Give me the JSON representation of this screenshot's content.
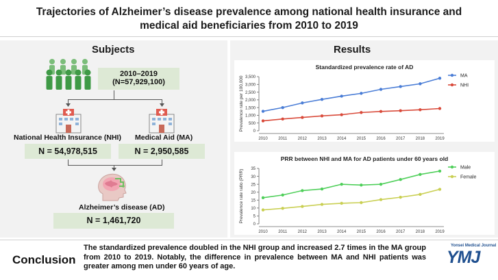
{
  "header": {
    "title_line1": "Trajectories of Alzheimer’s disease prevalence among national health insurance and",
    "title_line2": "medical aid beneficiaries from 2010 to 2019"
  },
  "subjects": {
    "heading": "Subjects",
    "period": "2010–2019",
    "total": "(N=57,929,100)",
    "nhi_label": "National Health Insurance (NHI)",
    "nhi_count": "N = 54,978,515",
    "ma_label": "Medical Aid (MA)",
    "ma_count": "N = 2,950,585",
    "ad_label": "Alzheimer’s disease (AD)",
    "ad_count": "N = 1,461,720"
  },
  "results": {
    "heading": "Results"
  },
  "colors": {
    "ma": "#4a7dd6",
    "nhi": "#d94a3a",
    "male": "#4fcf5a",
    "female": "#c9cf52",
    "box": "#dde9d5"
  },
  "chart_data": [
    {
      "type": "line",
      "title": "Standardized prevalence rate of AD",
      "xlabel": "",
      "ylabel": "Prevalence rate per 100,000",
      "x": [
        "2010",
        "2011",
        "2012",
        "2013",
        "2014",
        "2015",
        "2016",
        "2017",
        "2018",
        "2019"
      ],
      "ylim": [
        0,
        3500
      ],
      "yticks": [
        "0",
        "500",
        "1,000",
        "1,500",
        "2,000",
        "2,500",
        "3,000",
        "3,500"
      ],
      "ytick_values": [
        0,
        500,
        1000,
        1500,
        2000,
        2500,
        3000,
        3500
      ],
      "series": [
        {
          "name": "MA",
          "color": "#4a7dd6",
          "values": [
            1260,
            1500,
            1800,
            2030,
            2240,
            2420,
            2680,
            2860,
            3040,
            3400
          ]
        },
        {
          "name": "NHI",
          "color": "#d94a3a",
          "values": [
            640,
            760,
            860,
            960,
            1040,
            1180,
            1250,
            1300,
            1360,
            1440
          ]
        }
      ],
      "legend": "top-right"
    },
    {
      "type": "line",
      "title": "PRR between NHI and MA for AD patients under 60 years old",
      "xlabel": "",
      "ylabel": "Prevalence rate ratio (PRR)",
      "x": [
        "2010",
        "2011",
        "2012",
        "2013",
        "2014",
        "2015",
        "2016",
        "2017",
        "2018",
        "2019"
      ],
      "ylim": [
        0,
        35
      ],
      "yticks": [
        "0",
        "5",
        "10",
        "15",
        "20",
        "25",
        "30",
        "35"
      ],
      "ytick_values": [
        0,
        5,
        10,
        15,
        20,
        25,
        30,
        35
      ],
      "series": [
        {
          "name": "Male",
          "color": "#4fcf5a",
          "values": [
            16.5,
            18.2,
            21.0,
            22.0,
            25.0,
            24.5,
            25.0,
            28.0,
            31.2,
            33.3
          ]
        },
        {
          "name": "Female",
          "color": "#c9cf52",
          "values": [
            8.8,
            9.8,
            11.0,
            12.3,
            13.0,
            13.4,
            15.3,
            16.8,
            18.6,
            21.8
          ]
        }
      ],
      "legend": "top-right"
    }
  ],
  "conclusion": {
    "label": "Conclusion",
    "text": "The standardized prevalence doubled in the NHI group and increased 2.7 times in the MA group from 2010 to 2019. Notably, the difference in prevalence between MA and NHI patients was greater among men under 60 years of age."
  },
  "journal": {
    "name": "Yonsei Medical Journal",
    "logo": "YMJ"
  }
}
